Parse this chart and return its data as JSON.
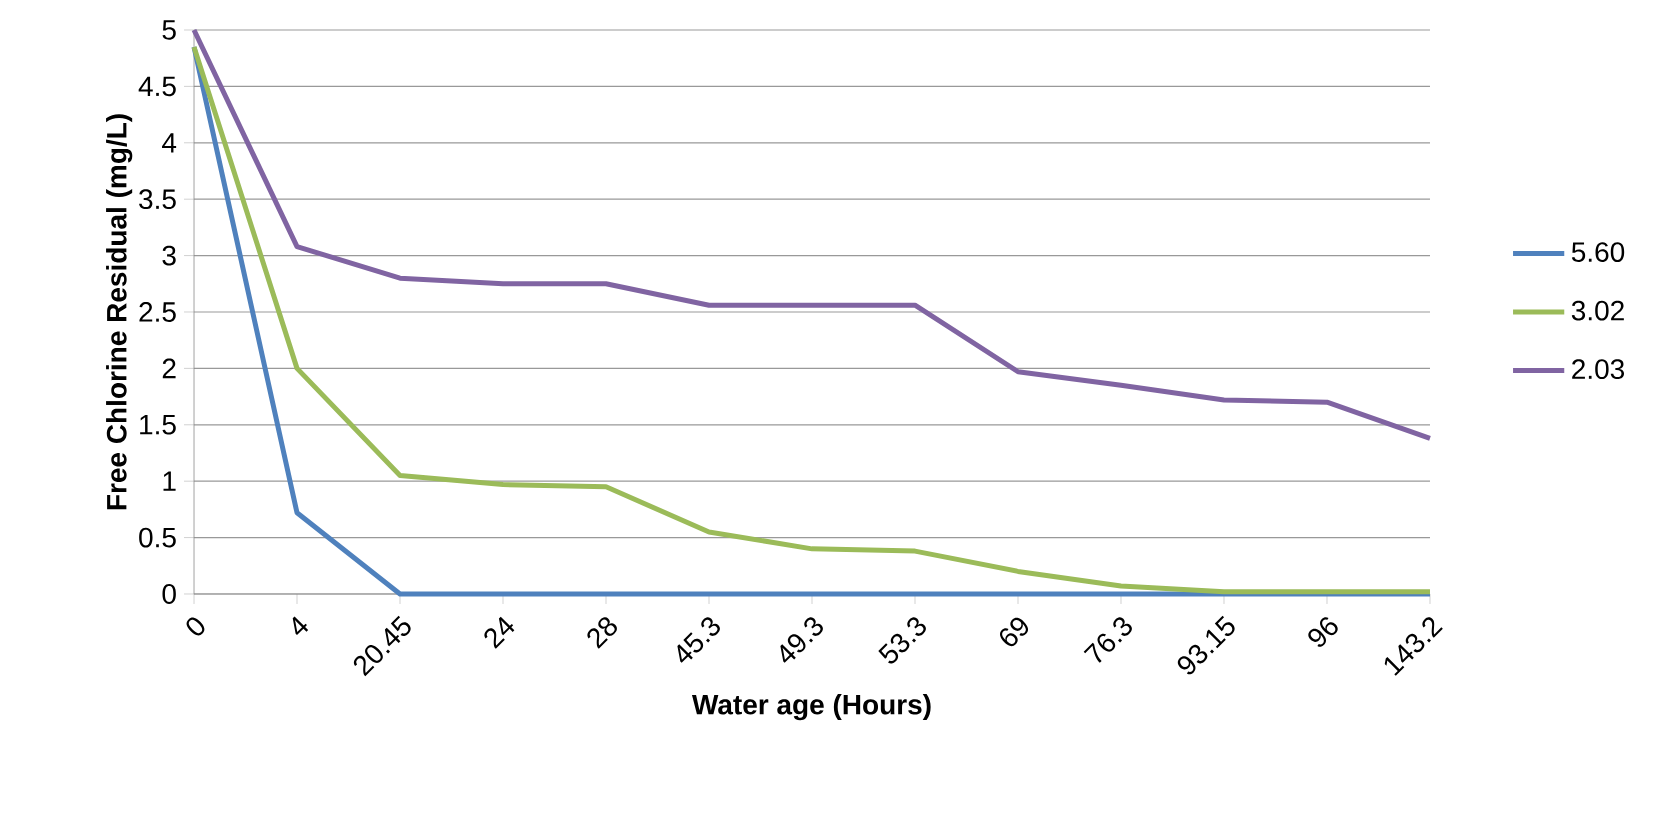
{
  "chart_data": {
    "type": "line",
    "xlabel": "Water age (Hours)",
    "ylabel": "Free Chlorine Residual (mg/L)",
    "categories": [
      "0",
      "4",
      "20.45",
      "24",
      "28",
      "45.3",
      "49.3",
      "53.3",
      "69",
      "76.3",
      "93.15",
      "96",
      "143.2"
    ],
    "series": [
      {
        "name": "5.60",
        "color": "#4f81bd",
        "values": [
          4.85,
          0.72,
          0,
          0,
          0,
          0,
          0,
          0,
          0,
          0,
          0,
          0,
          0
        ]
      },
      {
        "name": "3.02",
        "color": "#9bbb59",
        "values": [
          4.85,
          2.0,
          1.05,
          0.97,
          0.95,
          0.55,
          0.4,
          0.38,
          0.2,
          0.07,
          0.02,
          0.02,
          0.02
        ]
      },
      {
        "name": "2.03",
        "color": "#8064a2",
        "values": [
          5.0,
          3.08,
          2.8,
          2.75,
          2.75,
          2.56,
          2.56,
          2.56,
          1.97,
          1.85,
          1.72,
          1.7,
          1.38
        ]
      }
    ],
    "ylim": [
      0,
      5
    ],
    "yticks": [
      0,
      0.5,
      1,
      1.5,
      2,
      2.5,
      3,
      3.5,
      4,
      4.5,
      5
    ],
    "grid": "y",
    "legend": "right",
    "marker": "none",
    "line_style": "solid"
  }
}
